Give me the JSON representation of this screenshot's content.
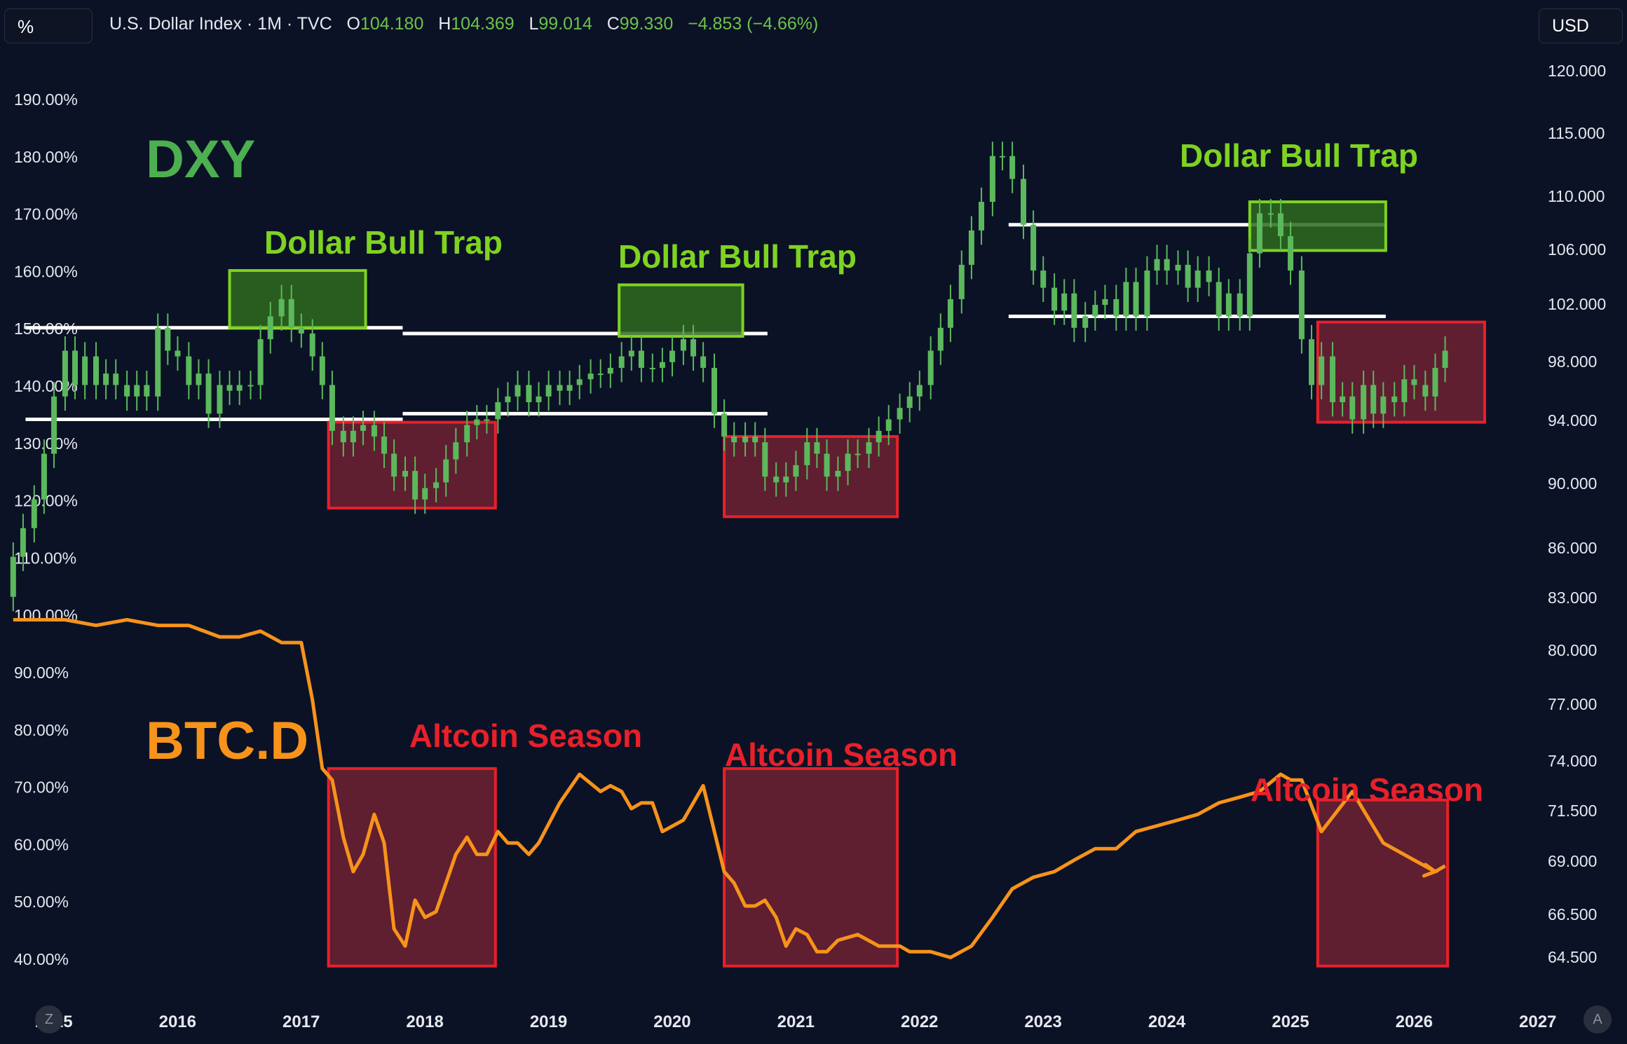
{
  "toolbar": {
    "percent_label": "%",
    "currency_label": "USD",
    "zoom_left_label": "Z",
    "auto_right_label": "A"
  },
  "symbol_legend": {
    "name": "U.S. Dollar Index · 1M · TVC",
    "open_key": "O",
    "open": "104.180",
    "high_key": "H",
    "high": "104.369",
    "low_key": "L",
    "low": "99.014",
    "close_key": "C",
    "close": "99.330",
    "change": "−4.853 (−4.66%)"
  },
  "colors": {
    "background": "#0b1226",
    "candle": "#5cb85c",
    "btcd_line": "#f7931a",
    "dxy_label": "#4caf50",
    "btcd_label": "#f7931a",
    "bull_trap_text": "#7ed321",
    "altcoin_text": "#e8202a",
    "green_box_fill": "#2e6b1f",
    "green_box_stroke": "#7ed321",
    "red_box_fill": "#6e2233",
    "red_box_stroke": "#e8202a",
    "level_line": "#ffffff"
  },
  "chart_data": {
    "type": "line",
    "x_axis": {
      "labels": [
        "2015",
        "2016",
        "2017",
        "2018",
        "2019",
        "2020",
        "2021",
        "2022",
        "2023",
        "2024",
        "2025",
        "2026",
        "2027"
      ],
      "range": [
        2014.7,
        2027.2
      ]
    },
    "left_axis": {
      "labels": [
        "190.00%",
        "180.00%",
        "170.00%",
        "160.00%",
        "150.00%",
        "140.00%",
        "130.00%",
        "120.00%",
        "110.00%",
        "100.00%",
        "90.00%",
        "80.00%",
        "70.00%",
        "60.00%",
        "50.00%",
        "40.00%"
      ]
    },
    "right_axis": {
      "labels": [
        "120.000",
        "115.000",
        "110.000",
        "106.000",
        "102.000",
        "98.000",
        "94.000",
        "90.000",
        "86.000",
        "83.000",
        "80.000",
        "77.000",
        "74.000",
        "71.500",
        "69.000",
        "66.500",
        "64.500"
      ]
    },
    "series": [
      {
        "type": "candlestick",
        "name": "U.S. Dollar Index",
        "unit": "percent change from first bar",
        "x": [
          2014.75,
          2014.83,
          2014.92,
          2015.0,
          2015.08,
          2015.17,
          2015.25,
          2015.33,
          2015.42,
          2015.5,
          2015.58,
          2015.67,
          2015.75,
          2015.83,
          2015.92,
          2016.0,
          2016.08,
          2016.17,
          2016.25,
          2016.33,
          2016.42,
          2016.5,
          2016.58,
          2016.67,
          2016.75,
          2016.83,
          2016.92,
          2017.0,
          2017.08,
          2017.17,
          2017.25,
          2017.33,
          2017.42,
          2017.5,
          2017.58,
          2017.67,
          2017.75,
          2017.83,
          2017.92,
          2018.0,
          2018.08,
          2018.17,
          2018.25,
          2018.33,
          2018.42,
          2018.5,
          2018.58,
          2018.67,
          2018.75,
          2018.83,
          2018.92,
          2019.0,
          2019.08,
          2019.17,
          2019.25,
          2019.33,
          2019.42,
          2019.5,
          2019.58,
          2019.67,
          2019.75,
          2019.83,
          2019.92,
          2020.0,
          2020.08,
          2020.17,
          2020.25,
          2020.33,
          2020.42,
          2020.5,
          2020.58,
          2020.67,
          2020.75,
          2020.83,
          2020.92,
          2021.0,
          2021.08,
          2021.17,
          2021.25,
          2021.33,
          2021.42,
          2021.5,
          2021.58,
          2021.67,
          2021.75,
          2021.83,
          2021.92,
          2022.0,
          2022.08,
          2022.17,
          2022.25,
          2022.33,
          2022.42,
          2022.5,
          2022.58,
          2022.67,
          2022.75,
          2022.83,
          2022.92,
          2023.0,
          2023.08,
          2023.17,
          2023.25,
          2023.33,
          2023.42,
          2023.5,
          2023.58,
          2023.67,
          2023.75,
          2023.83,
          2023.92,
          2024.0,
          2024.08,
          2024.17,
          2024.25,
          2024.33,
          2024.42,
          2024.5,
          2024.58,
          2024.67,
          2024.75,
          2024.83,
          2024.92,
          2025.0,
          2025.08,
          2025.17,
          2025.25,
          2025.33,
          2025.42,
          2025.5,
          2025.58,
          2025.67,
          2025.75,
          2025.83,
          2025.92,
          2026.0,
          2026.08,
          2026.17,
          2026.25,
          2026.33
        ],
        "open": [
          103,
          110,
          115,
          120,
          128,
          138,
          146,
          140,
          145,
          140,
          142,
          140,
          138,
          140,
          138,
          150,
          146,
          145,
          140,
          142,
          135,
          140,
          139,
          140,
          140,
          148,
          152,
          155,
          150,
          149,
          145,
          140,
          132,
          130,
          132,
          133,
          131,
          128,
          124,
          125,
          120,
          122,
          123,
          127,
          130,
          133,
          134,
          134,
          137,
          138,
          140,
          137,
          138,
          140,
          139,
          140,
          141,
          142,
          142,
          143,
          145,
          146,
          143,
          143,
          144,
          146,
          148,
          145,
          143,
          135,
          131,
          130,
          131,
          130,
          124,
          123,
          124,
          126,
          130,
          128,
          124,
          125,
          128,
          128,
          130,
          132,
          134,
          136,
          138,
          140,
          146,
          150,
          155,
          161,
          167,
          172,
          180,
          180,
          176,
          168,
          160,
          157,
          153,
          156,
          150,
          152,
          154,
          155,
          152,
          158,
          152,
          160,
          162,
          160,
          161,
          157,
          160,
          158,
          152,
          156,
          152,
          163,
          170,
          170,
          166,
          160,
          148,
          140,
          145,
          137,
          138,
          134,
          140,
          135,
          138,
          137,
          141,
          140,
          138,
          143
        ],
        "close": [
          110,
          115,
          120,
          128,
          138,
          146,
          140,
          145,
          140,
          142,
          140,
          138,
          140,
          138,
          150,
          146,
          145,
          140,
          142,
          135,
          140,
          139,
          140,
          140,
          148,
          152,
          155,
          150,
          149,
          145,
          140,
          132,
          130,
          132,
          133,
          131,
          128,
          124,
          125,
          120,
          122,
          123,
          127,
          130,
          133,
          134,
          134,
          137,
          138,
          140,
          137,
          138,
          140,
          139,
          140,
          141,
          142,
          142,
          143,
          145,
          146,
          143,
          143,
          144,
          146,
          148,
          145,
          143,
          135,
          131,
          130,
          131,
          130,
          124,
          123,
          124,
          126,
          130,
          128,
          124,
          125,
          128,
          128,
          130,
          132,
          134,
          136,
          138,
          140,
          146,
          150,
          155,
          161,
          167,
          172,
          180,
          180,
          176,
          168,
          160,
          157,
          153,
          156,
          150,
          152,
          154,
          155,
          152,
          158,
          152,
          160,
          162,
          160,
          161,
          157,
          160,
          158,
          152,
          156,
          152,
          163,
          170,
          170,
          166,
          160,
          148,
          140,
          145,
          137,
          138,
          134,
          140,
          135,
          138,
          137,
          141,
          140,
          138,
          143,
          146
        ]
      },
      {
        "type": "line",
        "name": "BTC.D",
        "unit": "percent (left axis)",
        "x": [
          2014.75,
          2014.92,
          2015.17,
          2015.42,
          2015.67,
          2015.92,
          2016.17,
          2016.42,
          2016.58,
          2016.75,
          2016.92,
          2017.08,
          2017.17,
          2017.25,
          2017.33,
          2017.42,
          2017.5,
          2017.58,
          2017.67,
          2017.75,
          2017.83,
          2017.92,
          2018.0,
          2018.08,
          2018.17,
          2018.25,
          2018.33,
          2018.42,
          2018.5,
          2018.58,
          2018.67,
          2018.75,
          2018.83,
          2018.92,
          2019.0,
          2019.17,
          2019.33,
          2019.5,
          2019.58,
          2019.67,
          2019.75,
          2019.83,
          2019.92,
          2020.0,
          2020.17,
          2020.33,
          2020.5,
          2020.58,
          2020.67,
          2020.75,
          2020.83,
          2020.92,
          2021.0,
          2021.08,
          2021.17,
          2021.25,
          2021.33,
          2021.42,
          2021.58,
          2021.75,
          2021.92,
          2022.0,
          2022.17,
          2022.33,
          2022.5,
          2022.67,
          2022.83,
          2023.0,
          2023.17,
          2023.33,
          2023.5,
          2023.67,
          2023.83,
          2024.0,
          2024.17,
          2024.33,
          2024.5,
          2024.67,
          2024.83,
          2025.0,
          2025.08,
          2025.17,
          2025.33,
          2025.58,
          2025.83,
          2026.08,
          2026.25,
          2026.33
        ],
        "y": [
          99,
          99,
          99,
          98,
          99,
          98,
          98,
          96,
          96,
          97,
          95,
          95,
          85,
          73,
          71,
          61,
          55,
          58,
          65,
          60,
          45,
          42,
          50,
          47,
          48,
          53,
          58,
          61,
          58,
          58,
          62,
          60,
          60,
          58,
          60,
          67,
          72,
          69,
          70,
          69,
          66,
          67,
          67,
          62,
          64,
          70,
          55,
          53,
          49,
          49,
          50,
          47,
          42,
          45,
          44,
          41,
          41,
          43,
          44,
          42,
          42,
          41,
          41,
          40,
          42,
          47,
          52,
          54,
          55,
          57,
          59,
          59,
          62,
          63,
          64,
          65,
          67,
          68,
          69,
          72,
          71,
          71,
          62,
          69,
          60,
          57,
          55,
          56
        ]
      }
    ],
    "annotations": [
      {
        "text": "DXY",
        "type": "label"
      },
      {
        "text": "BTC.D",
        "type": "label"
      },
      {
        "text": "Dollar Bull Trap",
        "period": [
          2016.5,
          2017.6
        ]
      },
      {
        "text": "Dollar Bull Trap",
        "period": [
          2019.65,
          2020.65
        ]
      },
      {
        "text": "Dollar Bull Trap",
        "period": [
          2024.75,
          2025.85
        ]
      },
      {
        "text": "Altcoin Season",
        "period": [
          2017.3,
          2018.65
        ]
      },
      {
        "text": "Altcoin Season",
        "period": [
          2020.5,
          2021.9
        ]
      },
      {
        "text": "Altcoin Season",
        "period": [
          2025.3,
          2026.35
        ]
      }
    ]
  }
}
